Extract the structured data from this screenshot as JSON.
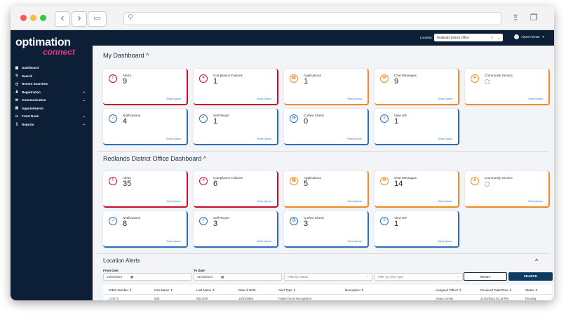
{
  "brand": {
    "line1": "optimation",
    "line2": "connect"
  },
  "sidebar": {
    "items": [
      {
        "label": "Dashboard",
        "icon": "grid-icon",
        "glyph": "▦",
        "chevron": false,
        "active": true
      },
      {
        "label": "Search",
        "icon": "search-icon",
        "glyph": "⚲",
        "chevron": false
      },
      {
        "label": "Recent Searches",
        "icon": "clock-icon",
        "glyph": "◷",
        "chevron": false
      },
      {
        "label": "Registration",
        "icon": "users-icon",
        "glyph": "♟",
        "chevron": true
      },
      {
        "label": "Communication",
        "icon": "envelope-icon",
        "glyph": "✉",
        "chevron": true
      },
      {
        "label": "Appointments",
        "icon": "calendar-icon",
        "glyph": "▤",
        "chevron": false
      },
      {
        "label": "Front Desk",
        "icon": "monitor-icon",
        "glyph": "▭",
        "chevron": true
      },
      {
        "label": "Reports",
        "icon": "document-icon",
        "glyph": "▯",
        "chevron": true
      }
    ]
  },
  "topbar": {
    "location_label": "Location:",
    "location_value": "Redlands District Office",
    "clear_glyph": "×",
    "chevron_glyph": "⌄",
    "user_name": "Aiyani Azman",
    "user_arrow": "➜"
  },
  "my_dashboard": {
    "title": "My Dashboard ^",
    "show_queue": "Show Queue",
    "cards": [
      {
        "label": "Alerts",
        "value": "9",
        "color": "#c8102e",
        "icon": "alert-icon",
        "glyph": "!"
      },
      {
        "label": "Compliance Failures",
        "value": "1",
        "color": "#c8102e",
        "icon": "x-circle-icon",
        "glyph": "×"
      },
      {
        "label": "Applications",
        "value": "1",
        "color": "#f08a24",
        "icon": "application-icon",
        "glyph": "▤"
      },
      {
        "label": "Chat Messages",
        "value": "9",
        "color": "#f08a24",
        "icon": "chat-icon",
        "glyph": "✉"
      },
      {
        "label": "Community Service",
        "value": "",
        "color": "#f08a24",
        "icon": "group-icon",
        "glyph": "♣",
        "spinner": true
      },
      {
        "label": "Notifications",
        "value": "4",
        "color": "#2a6fb8",
        "icon": "bell-icon",
        "glyph": "♪"
      },
      {
        "label": "Self Report",
        "value": "1",
        "color": "#2a6fb8",
        "icon": "check-icon",
        "glyph": "✓"
      },
      {
        "label": "Curfew Check",
        "value": "0",
        "color": "#2a6fb8",
        "icon": "clock-icon",
        "glyph": "◷"
      },
      {
        "label": "View SIF",
        "value": "1",
        "color": "#2a6fb8",
        "icon": "list-icon",
        "glyph": "≡"
      }
    ]
  },
  "office_dashboard": {
    "title": "Redlands District Office Dashboard ^",
    "show_queue": "Show Queue",
    "cards": [
      {
        "label": "Alerts",
        "value": "35",
        "color": "#c8102e",
        "icon": "alert-icon",
        "glyph": "!"
      },
      {
        "label": "Compliance Failures",
        "value": "6",
        "color": "#c8102e",
        "icon": "x-circle-icon",
        "glyph": "×"
      },
      {
        "label": "Applications",
        "value": "5",
        "color": "#f08a24",
        "icon": "application-icon",
        "glyph": "▤"
      },
      {
        "label": "Chat Messages",
        "value": "14",
        "color": "#f08a24",
        "icon": "chat-icon",
        "glyph": "✉"
      },
      {
        "label": "Community Service",
        "value": "",
        "color": "#f08a24",
        "icon": "group-icon",
        "glyph": "♣",
        "spinner": true
      },
      {
        "label": "Notifications",
        "value": "8",
        "color": "#2a6fb8",
        "icon": "bell-icon",
        "glyph": "♪"
      },
      {
        "label": "Self Report",
        "value": "3",
        "color": "#2a6fb8",
        "icon": "check-icon",
        "glyph": "✓"
      },
      {
        "label": "Curfew Check",
        "value": "3",
        "color": "#2a6fb8",
        "icon": "clock-icon",
        "glyph": "◷"
      },
      {
        "label": "View SIF",
        "value": "1",
        "color": "#2a6fb8",
        "icon": "list-icon",
        "glyph": "≡"
      }
    ]
  },
  "location_alerts": {
    "title": "Location Alerts",
    "collapse_glyph": "^",
    "from_label": "From Date",
    "from_value": "18/03/2024",
    "to_label": "To Date",
    "to_value": "21/03/2024",
    "calendar_glyph": "▦",
    "status_placeholder": "Filter by Status",
    "type_placeholder": "Filter by Alert Type",
    "dropdown_glyph": "⌄",
    "reset_label": "RESET",
    "search_label": "SEARCH",
    "columns": [
      "IOMS Number ⇕",
      "First Name ⇕",
      "Last Name ⇕",
      "Date of Birth",
      "Alert Type ⇕",
      "Description ⇕",
      "Assigned Officer ⇕",
      "Received Date/Time ⇕",
      "Status ⇕"
    ],
    "rows": [
      [
        "123875",
        "Bob",
        "WILSON",
        "15/03/1965",
        "Failed Facial Recognition",
        "",
        "Aiyani Azman",
        "21/03/2024 01:19 PM",
        "Pending"
      ]
    ]
  }
}
